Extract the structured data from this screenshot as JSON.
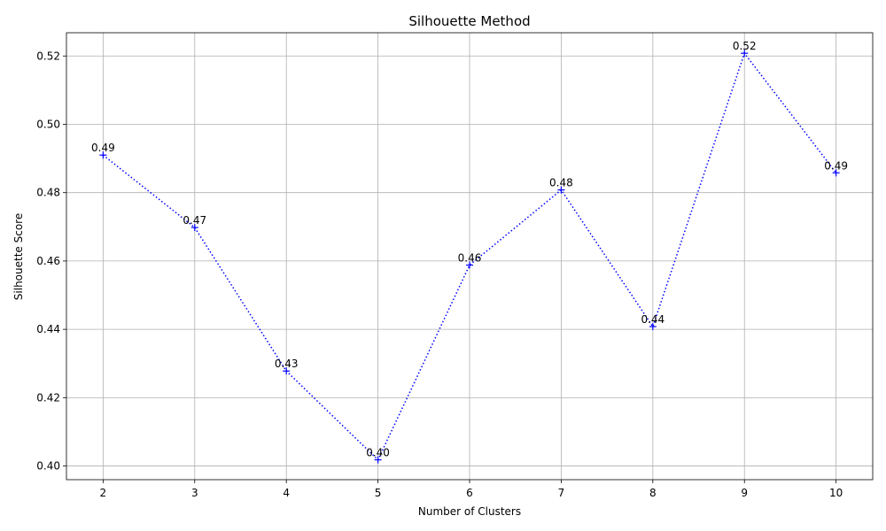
{
  "chart_data": {
    "type": "line",
    "title": "Silhouette Method",
    "xlabel": "Number of Clusters",
    "ylabel": "Silhouette Score",
    "x": [
      2,
      3,
      4,
      5,
      6,
      7,
      8,
      9,
      10
    ],
    "values": [
      0.491,
      0.4698,
      0.4278,
      0.4018,
      0.4588,
      0.4808,
      0.4408,
      0.5208,
      0.4858
    ],
    "data_labels": [
      "0.49",
      "0.47",
      "0.43",
      "0.40",
      "0.46",
      "0.48",
      "0.44",
      "0.52",
      "0.49"
    ],
    "xticks": [
      "2",
      "3",
      "4",
      "5",
      "6",
      "7",
      "8",
      "9",
      "10"
    ],
    "yticks": [
      0.4,
      0.42,
      0.44,
      0.46,
      0.48,
      0.5,
      0.52
    ],
    "ytick_labels": [
      "0.40",
      "0.42",
      "0.44",
      "0.46",
      "0.48",
      "0.50",
      "0.52"
    ],
    "xlim": [
      1.6,
      10.4
    ],
    "ylim": [
      0.396,
      0.5268
    ],
    "grid": true,
    "line_style": "dotted",
    "marker": "plus",
    "color": "#0000ff"
  }
}
